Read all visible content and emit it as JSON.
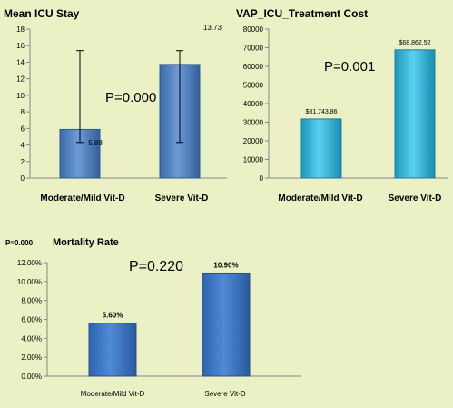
{
  "colors": {
    "background": "#ebf1c4",
    "chart1_bar": "#4f81bd",
    "chart2_bar": "#31b4d8",
    "chart3_bar": "#3e78c6",
    "text": "#000000"
  },
  "chart_data": [
    {
      "type": "bar",
      "title": "Mean ICU Stay",
      "categories": [
        "Moderate/Mild Vit-D",
        "Severe Vit-D"
      ],
      "values": [
        5.88,
        13.73
      ],
      "value_labels": [
        "5.88",
        "13.73"
      ],
      "error_bars": [
        {
          "low": 4.3,
          "high": 15.4
        },
        {
          "low": 4.3,
          "high": 15.4
        }
      ],
      "annotation": "P=0.000",
      "ylim": [
        0,
        18
      ],
      "yticks": [
        0,
        2,
        4,
        6,
        8,
        10,
        12,
        14,
        16,
        18
      ],
      "ytick_labels": [
        "0",
        "2",
        "4",
        "6",
        "8",
        "10",
        "12",
        "14",
        "16",
        "18"
      ],
      "grid": false,
      "legend": "none"
    },
    {
      "type": "bar",
      "title": "VAP_ICU_Treatment Cost",
      "categories": [
        "Moderate/Mild Vit-D",
        "Severe Vit-D"
      ],
      "values": [
        31743.86,
        68862.52
      ],
      "value_labels": [
        "$31,743.86",
        "$68,862.52"
      ],
      "annotation": "P=0.001",
      "ylim": [
        0,
        80000
      ],
      "yticks": [
        0,
        10000,
        20000,
        30000,
        40000,
        50000,
        60000,
        70000,
        80000
      ],
      "ytick_labels": [
        "0",
        "10000",
        "20000",
        "30000",
        "40000",
        "50000",
        "60000",
        "70000",
        "80000"
      ],
      "grid": false,
      "legend": "none"
    },
    {
      "type": "bar",
      "title": "Mortality Rate",
      "categories": [
        "Moderate/Mild Vit-D",
        "Severe Vit-D"
      ],
      "values": [
        5.6,
        10.9
      ],
      "value_labels": [
        "5.60%",
        "10.90%"
      ],
      "annotation": "P=0.220",
      "side_note": "P=0.000",
      "ylim": [
        0,
        12
      ],
      "yticks": [
        0,
        2,
        4,
        6,
        8,
        10,
        12
      ],
      "ytick_labels": [
        "0.00%",
        "2.00%",
        "4.00%",
        "6.00%",
        "8.00%",
        "10.00%",
        "12.00%"
      ],
      "grid": false,
      "legend": "none"
    }
  ]
}
